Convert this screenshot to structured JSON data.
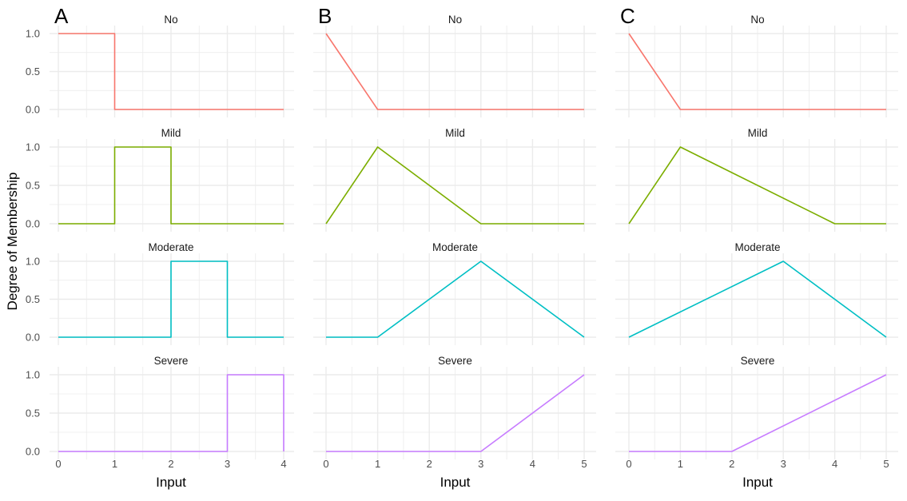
{
  "y_axis_title": "Degree of Membership",
  "chart_data": {
    "type": "line",
    "layout": "3 columns x 4 rows small multiples",
    "background": "#ffffff",
    "grid": true,
    "gridline_color": "#ebebeb",
    "ylabel": "Degree of Membership",
    "ylim": [
      0,
      1
    ],
    "y_ticks": [
      "0.0",
      "0.5",
      "1.0"
    ],
    "facet_labels": [
      "No",
      "Mild",
      "Moderate",
      "Severe"
    ],
    "facet_colors": [
      "#F8766D",
      "#7CAE00",
      "#00BFC4",
      "#C77CFF"
    ],
    "panels": [
      {
        "label": "A",
        "xlabel": "Input",
        "xlim": [
          0,
          4
        ],
        "x_ticks": [
          "0",
          "1",
          "2",
          "3",
          "4"
        ],
        "series": [
          {
            "name": "No",
            "x": [
              0,
              1,
              1,
              4
            ],
            "y": [
              1,
              1,
              0,
              0
            ]
          },
          {
            "name": "Mild",
            "x": [
              0,
              1,
              1,
              2,
              2,
              4
            ],
            "y": [
              0,
              0,
              1,
              1,
              0,
              0
            ]
          },
          {
            "name": "Moderate",
            "x": [
              0,
              2,
              2,
              3,
              3,
              4
            ],
            "y": [
              0,
              0,
              1,
              1,
              0,
              0
            ]
          },
          {
            "name": "Severe",
            "x": [
              0,
              3,
              3,
              4,
              4
            ],
            "y": [
              0,
              0,
              1,
              1,
              0
            ]
          }
        ]
      },
      {
        "label": "B",
        "xlabel": "Input",
        "xlim": [
          0,
          5
        ],
        "x_ticks": [
          "0",
          "1",
          "2",
          "3",
          "4",
          "5"
        ],
        "series": [
          {
            "name": "No",
            "x": [
              0,
              1,
              5
            ],
            "y": [
              1,
              0,
              0
            ]
          },
          {
            "name": "Mild",
            "x": [
              0,
              1,
              3,
              5
            ],
            "y": [
              0,
              1,
              0,
              0
            ]
          },
          {
            "name": "Moderate",
            "x": [
              0,
              1,
              3,
              5
            ],
            "y": [
              0,
              0,
              1,
              0
            ]
          },
          {
            "name": "Severe",
            "x": [
              0,
              3,
              5
            ],
            "y": [
              0,
              0,
              1
            ]
          }
        ]
      },
      {
        "label": "C",
        "xlabel": "Input",
        "xlim": [
          0,
          5
        ],
        "x_ticks": [
          "0",
          "1",
          "2",
          "3",
          "4",
          "5"
        ],
        "series": [
          {
            "name": "No",
            "x": [
              0,
              1,
              5
            ],
            "y": [
              1,
              0,
              0
            ]
          },
          {
            "name": "Mild",
            "x": [
              0,
              1,
              4,
              5
            ],
            "y": [
              0,
              1,
              0,
              0
            ]
          },
          {
            "name": "Moderate",
            "x": [
              0,
              3,
              5
            ],
            "y": [
              0,
              1,
              0
            ]
          },
          {
            "name": "Severe",
            "x": [
              0,
              2,
              5
            ],
            "y": [
              0,
              0,
              1
            ]
          }
        ]
      }
    ]
  }
}
